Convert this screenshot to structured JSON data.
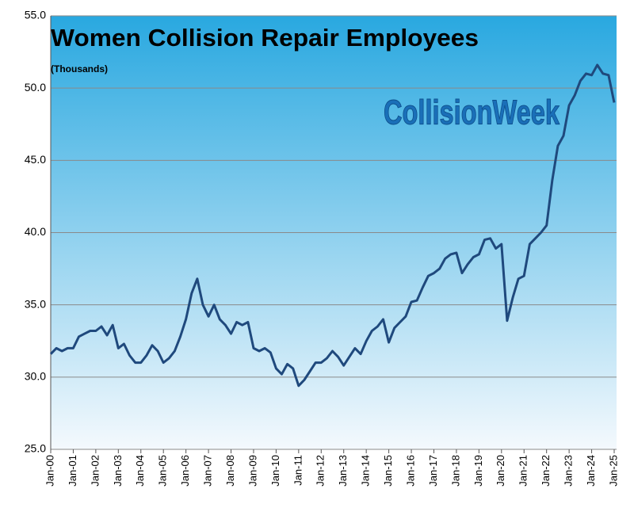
{
  "chart_data": {
    "type": "line",
    "title": "Women Collision Repair Employees",
    "subtitle": "(Thousands)",
    "watermark": "CollisionWeek",
    "categories": [
      "Jan-00",
      null,
      null,
      null,
      "Jan-01",
      null,
      null,
      null,
      "Jan-02",
      null,
      null,
      null,
      "Jan-03",
      null,
      null,
      null,
      "Jan-04",
      null,
      null,
      null,
      "Jan-05",
      null,
      null,
      null,
      "Jan-06",
      null,
      null,
      null,
      "Jan-07",
      null,
      null,
      null,
      "Jan-08",
      null,
      null,
      null,
      "Jan-09",
      null,
      null,
      null,
      "Jan-10",
      null,
      null,
      null,
      "Jan-11",
      null,
      null,
      null,
      "Jan-12",
      null,
      null,
      null,
      "Jan-13",
      null,
      null,
      null,
      "Jan-14",
      null,
      null,
      null,
      "Jan-15",
      null,
      null,
      null,
      "Jan-16",
      null,
      null,
      null,
      "Jan-17",
      null,
      null,
      null,
      "Jan-18",
      null,
      null,
      null,
      "Jan-19",
      null,
      null,
      null,
      "Jan-20",
      null,
      null,
      null,
      "Jan-21",
      null,
      null,
      null,
      "Jan-22",
      null,
      null,
      null,
      "Jan-23",
      null,
      null,
      null,
      "Jan-24",
      null,
      null,
      null,
      "Jan-25"
    ],
    "series": [
      {
        "name": "Women Collision Repair Employees",
        "color": "#1f497d",
        "values": [
          31.6,
          32.0,
          31.8,
          32.0,
          32.0,
          32.8,
          33.0,
          33.2,
          33.2,
          33.5,
          32.9,
          33.6,
          32.0,
          32.3,
          31.5,
          31.0,
          31.0,
          31.5,
          32.2,
          31.8,
          31.0,
          31.3,
          31.8,
          32.8,
          34.0,
          35.8,
          36.8,
          35.0,
          34.2,
          35.0,
          34.0,
          33.6,
          33.0,
          33.8,
          33.6,
          33.8,
          32.0,
          31.8,
          32.0,
          31.7,
          30.6,
          30.2,
          30.9,
          30.6,
          29.4,
          29.8,
          30.4,
          31.0,
          31.0,
          31.3,
          31.8,
          31.4,
          30.8,
          31.4,
          32.0,
          31.6,
          32.5,
          33.2,
          33.5,
          34.0,
          32.4,
          33.4,
          33.8,
          34.2,
          35.2,
          35.3,
          36.2,
          37.0,
          37.2,
          37.5,
          38.2,
          38.5,
          38.6,
          37.2,
          37.8,
          38.3,
          38.5,
          39.5,
          39.6,
          38.9,
          39.2,
          33.9,
          35.5,
          36.8,
          37.0,
          39.2,
          39.6,
          40.0,
          40.5,
          43.6,
          46.0,
          46.7,
          48.8,
          49.5,
          50.5,
          51.0,
          50.9,
          51.6,
          51.0,
          50.9,
          49.0
        ]
      }
    ],
    "ylim": [
      25,
      55
    ],
    "yticks": [
      {
        "value": 25,
        "label": "25.0"
      },
      {
        "value": 30,
        "label": "30.0"
      },
      {
        "value": 35,
        "label": "35.0"
      },
      {
        "value": 40,
        "label": "40.0"
      },
      {
        "value": 45,
        "label": "45.0"
      },
      {
        "value": 50,
        "label": "50.0"
      },
      {
        "value": 55,
        "label": "55.0"
      }
    ],
    "grid": true
  }
}
